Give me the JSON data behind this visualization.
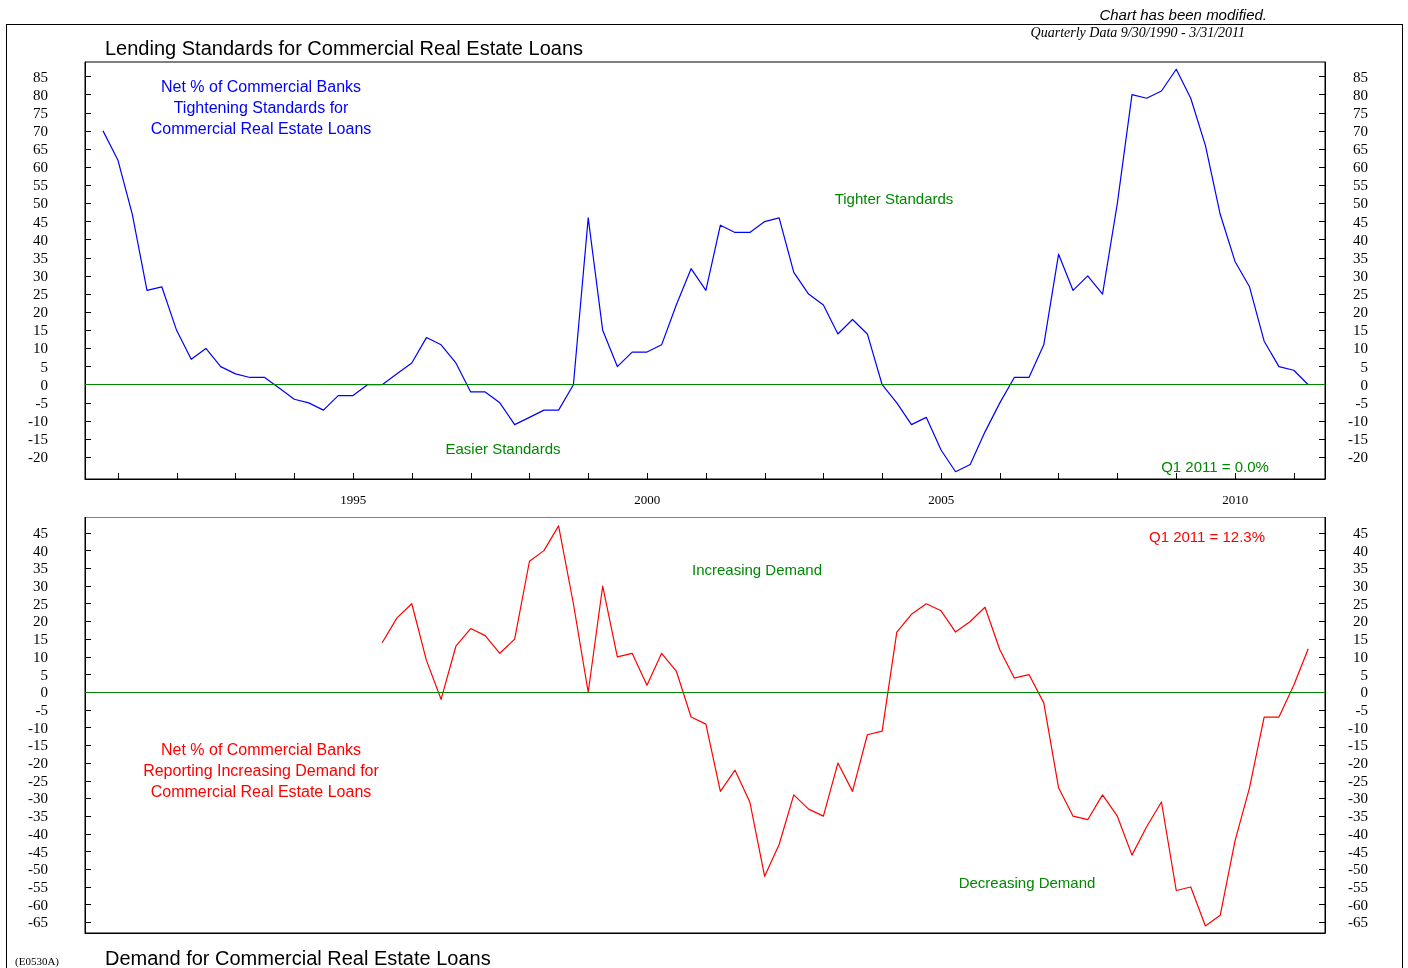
{
  "chart_data": [
    {
      "type": "line",
      "title": "Lending Standards for Commercial Real Estate Loans",
      "subtitle": "Quarterly Data 9/30/1990 - 3/31/2011",
      "annotations": [
        "Tighter Standards",
        "Easier Standards",
        "Q1 2011 = 0.0%",
        "Chart has been modified."
      ],
      "x": [
        "1990-09-30",
        "1990-12-31",
        "1991-03-31",
        "1991-06-30",
        "1991-09-30",
        "1991-12-31",
        "1992-03-31",
        "1992-06-30",
        "1992-09-30",
        "1992-12-31",
        "1993-03-31",
        "1993-06-30",
        "1993-09-30",
        "1993-12-31",
        "1994-03-31",
        "1994-06-30",
        "1994-09-30",
        "1994-12-31",
        "1995-03-31",
        "1995-06-30",
        "1995-09-30",
        "1995-12-31",
        "1996-03-31",
        "1996-06-30",
        "1996-09-30",
        "1996-12-31",
        "1997-03-31",
        "1997-06-30",
        "1997-09-30",
        "1997-12-31",
        "1998-03-31",
        "1998-06-30",
        "1998-09-30",
        "1998-12-31",
        "1999-03-31",
        "1999-06-30",
        "1999-09-30",
        "1999-12-31",
        "2000-03-31",
        "2000-06-30",
        "2000-09-30",
        "2000-12-31",
        "2001-03-31",
        "2001-06-30",
        "2001-09-30",
        "2001-12-31",
        "2002-03-31",
        "2002-06-30",
        "2002-09-30",
        "2002-12-31",
        "2003-03-31",
        "2003-06-30",
        "2003-09-30",
        "2003-12-31",
        "2004-03-31",
        "2004-06-30",
        "2004-09-30",
        "2004-12-31",
        "2005-03-31",
        "2005-06-30",
        "2005-09-30",
        "2005-12-31",
        "2006-03-31",
        "2006-06-30",
        "2006-09-30",
        "2006-12-31",
        "2007-03-31",
        "2007-06-30",
        "2007-09-30",
        "2007-12-31",
        "2008-03-31",
        "2008-06-30",
        "2008-09-30",
        "2008-12-31",
        "2009-03-31",
        "2009-06-30",
        "2009-09-30",
        "2009-12-31",
        "2010-03-31",
        "2010-06-30",
        "2010-09-30",
        "2010-12-31",
        "2011-03-31"
      ],
      "series": [
        {
          "name": "Net % of Commercial Banks\nTightening Standards for\nCommercial Real Estate Loans",
          "color": "#0000ff",
          "values": [
            70,
            62,
            47,
            26,
            27,
            15,
            7,
            10,
            5,
            3,
            2,
            2,
            -1,
            -4,
            -5,
            -7,
            -3,
            -3,
            0,
            0,
            3,
            6,
            13,
            11,
            6,
            -2,
            -2,
            -5,
            -11,
            -9,
            -7,
            -7,
            0,
            46,
            15,
            5,
            9,
            9,
            11,
            22,
            32,
            26,
            44,
            42,
            42,
            45,
            46,
            31,
            25,
            22,
            14,
            18,
            14,
            0,
            -5,
            -11,
            -9,
            -18,
            -24,
            -22,
            -13,
            -5,
            2,
            2,
            11,
            36,
            26,
            30,
            25,
            50,
            80,
            79,
            81,
            87,
            79,
            66,
            47,
            34,
            27,
            12,
            5,
            4,
            0
          ]
        }
      ],
      "ref_lines": [
        {
          "axis": "y",
          "value": 0,
          "color": "#008800"
        }
      ],
      "marker": "none",
      "xlim": [
        "1990-06-10",
        "2011-07-13"
      ],
      "xticks": [
        {
          "value": "1991",
          "label": null
        },
        {
          "value": "1992",
          "label": null
        },
        {
          "value": "1993",
          "label": null
        },
        {
          "value": "1994",
          "label": null
        },
        "1995",
        {
          "value": "1996",
          "label": null
        },
        {
          "value": "1997",
          "label": null
        },
        {
          "value": "1998",
          "label": null
        },
        {
          "value": "1999",
          "label": null
        },
        "2000",
        {
          "value": "2001",
          "label": null
        },
        {
          "value": "2002",
          "label": null
        },
        {
          "value": "2003",
          "label": null
        },
        {
          "value": "2004",
          "label": null
        },
        "2005",
        {
          "value": "2006",
          "label": null
        },
        {
          "value": "2007",
          "label": null
        },
        {
          "value": "2008",
          "label": null
        },
        {
          "value": "2009",
          "label": null
        },
        "2010",
        {
          "value": "2011",
          "label": null
        }
      ],
      "ylim": [
        -26,
        89
      ],
      "yticks": [
        -20,
        -15,
        -10,
        -5,
        0,
        5,
        10,
        15,
        20,
        25,
        30,
        35,
        40,
        45,
        50,
        55,
        60,
        65,
        70,
        75,
        80,
        85
      ],
      "y2lim": [
        -26,
        89
      ],
      "y2ticks": [
        -20,
        -15,
        -10,
        -5,
        0,
        5,
        10,
        15,
        20,
        25,
        30,
        35,
        40,
        45,
        50,
        55,
        60,
        65,
        70,
        75,
        80,
        85
      ]
    },
    {
      "type": "line",
      "title": "Demand for Commercial Real Estate Loans",
      "annotations": [
        "Increasing Demand",
        "Decreasing Demand",
        "Q1 2011 = 12.3%",
        "(E0530A)"
      ],
      "x": [
        "1995-06-30",
        "1995-09-30",
        "1995-12-31",
        "1996-03-31",
        "1996-06-30",
        "1996-09-30",
        "1996-12-31",
        "1997-03-31",
        "1997-06-30",
        "1997-09-30",
        "1997-12-31",
        "1998-03-31",
        "1998-06-30",
        "1998-09-30",
        "1998-12-31",
        "1999-03-31",
        "1999-06-30",
        "1999-09-30",
        "1999-12-31",
        "2000-03-31",
        "2000-06-30",
        "2000-09-30",
        "2000-12-31",
        "2001-03-31",
        "2001-06-30",
        "2001-09-30",
        "2001-12-31",
        "2002-03-31",
        "2002-06-30",
        "2002-09-30",
        "2002-12-31",
        "2003-03-31",
        "2003-06-30",
        "2003-09-30",
        "2003-12-31",
        "2004-03-31",
        "2004-06-30",
        "2004-09-30",
        "2004-12-31",
        "2005-03-31",
        "2005-06-30",
        "2005-09-30",
        "2005-12-31",
        "2006-03-31",
        "2006-06-30",
        "2006-09-30",
        "2006-12-31",
        "2007-03-31",
        "2007-06-30",
        "2007-09-30",
        "2007-12-31",
        "2008-03-31",
        "2008-06-30",
        "2008-09-30",
        "2008-12-31",
        "2009-03-31",
        "2009-06-30",
        "2009-09-30",
        "2009-12-31",
        "2010-03-31",
        "2010-06-30",
        "2010-09-30",
        "2010-12-31",
        "2011-03-31"
      ],
      "series": [
        {
          "name": "Net % of Commercial Banks\nReporting Increasing Demand for\nCommercial Real Estate Loans",
          "color": "#ff0000",
          "values": [
            14,
            21,
            25,
            9,
            -2,
            13,
            18,
            16,
            11,
            15,
            37,
            40,
            47,
            25,
            0,
            30,
            10,
            11,
            2,
            11,
            6,
            -7,
            -9,
            -28,
            -22,
            -31,
            -52,
            -43,
            -29,
            -33,
            -35,
            -20,
            -28,
            -12,
            -11,
            17,
            22,
            25,
            23,
            17,
            20,
            24,
            12,
            4,
            5,
            -3,
            -27,
            -35,
            -36,
            -29,
            -35,
            -46,
            -38,
            -31,
            -56,
            -55,
            -66,
            -63,
            -42,
            -27,
            -7,
            -7,
            2,
            12.3
          ]
        }
      ],
      "ref_lines": [
        {
          "axis": "y",
          "value": 0,
          "color": "#008800"
        }
      ],
      "marker": "none",
      "tick_labels": "y",
      "xlim": [
        "1990-06-10",
        "2011-07-13"
      ],
      "ylim": [
        -68,
        49.5
      ],
      "yticks": [
        -65,
        -60,
        -55,
        -50,
        -45,
        -40,
        -35,
        -30,
        -25,
        -20,
        -15,
        -10,
        -5,
        0,
        5,
        10,
        15,
        20,
        25,
        30,
        35,
        40,
        45
      ],
      "y2lim": [
        -68,
        49.5
      ],
      "y2ticks": [
        -65,
        -60,
        -55,
        -50,
        -45,
        -40,
        -35,
        -30,
        -25,
        -20,
        -15,
        -10,
        -5,
        0,
        5,
        10,
        15,
        20,
        25,
        30,
        35,
        40,
        45
      ]
    }
  ]
}
